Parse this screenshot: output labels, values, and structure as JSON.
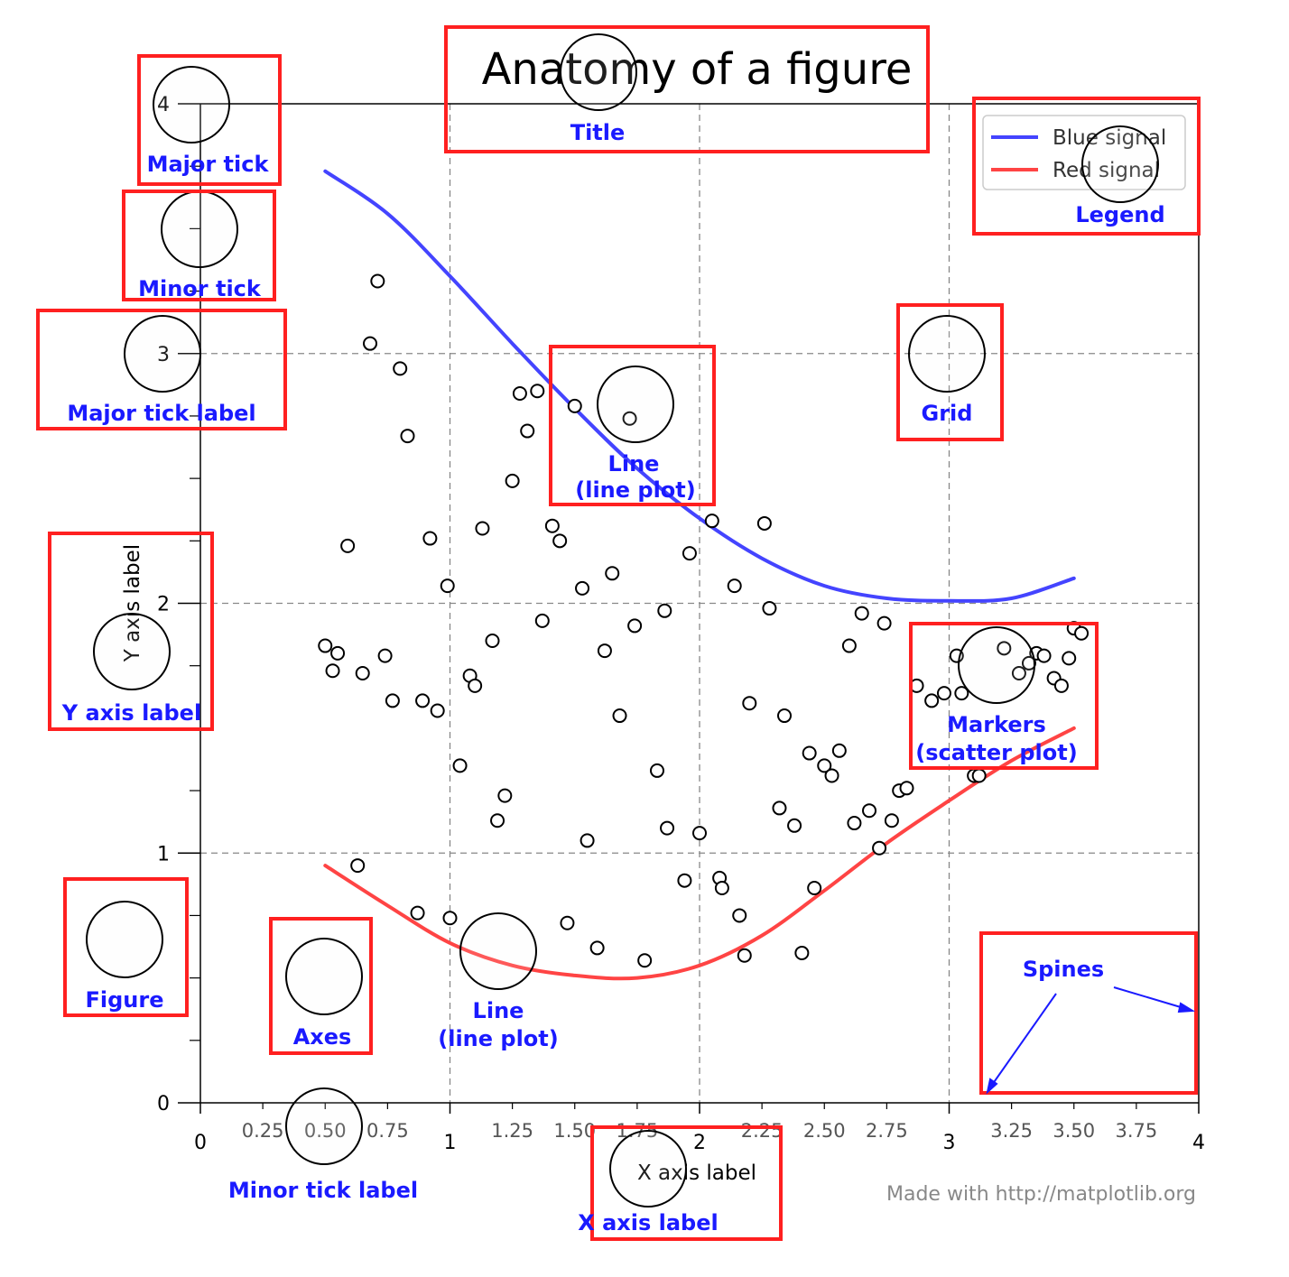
{
  "chart_data": {
    "type": "line",
    "title": "Anatomy of a figure",
    "xlabel": "X axis label",
    "ylabel": "Y axis label",
    "xlim": [
      0,
      4
    ],
    "ylim": [
      0,
      4
    ],
    "grid": true,
    "legend_position": "top-right",
    "x_major_ticks": [
      {
        "value": 0,
        "label": "0"
      },
      {
        "value": 1,
        "label": "1"
      },
      {
        "value": 2,
        "label": "2"
      },
      {
        "value": 3,
        "label": "3"
      },
      {
        "value": 4,
        "label": "4"
      }
    ],
    "x_minor_ticks": [
      {
        "value": 0.25,
        "label": "0.25"
      },
      {
        "value": 0.5,
        "label": "0.50"
      },
      {
        "value": 0.75,
        "label": "0.75"
      },
      {
        "value": 1.25,
        "label": "1.25"
      },
      {
        "value": 1.5,
        "label": "1.50"
      },
      {
        "value": 1.75,
        "label": "1.75"
      },
      {
        "value": 2.25,
        "label": "2.25"
      },
      {
        "value": 2.5,
        "label": "2.50"
      },
      {
        "value": 2.75,
        "label": "2.75"
      },
      {
        "value": 3.25,
        "label": "3.25"
      },
      {
        "value": 3.5,
        "label": "3.50"
      },
      {
        "value": 3.75,
        "label": "3.75"
      }
    ],
    "y_major_ticks": [
      {
        "value": 0,
        "label": "0"
      },
      {
        "value": 1,
        "label": "1"
      },
      {
        "value": 2,
        "label": "2"
      },
      {
        "value": 3,
        "label": "3"
      },
      {
        "value": 4,
        "label": "4"
      }
    ],
    "y_minor_ticks": [
      0.25,
      0.5,
      0.75,
      1.25,
      1.5,
      1.75,
      2.25,
      2.5,
      2.75,
      3.25,
      3.5,
      3.75
    ],
    "series": [
      {
        "name": "Blue signal",
        "type": "line",
        "color": "#4444ff",
        "x": [
          0.5,
          0.75,
          1.0,
          1.25,
          1.5,
          1.75,
          2.0,
          2.25,
          2.5,
          2.75,
          3.0,
          3.25,
          3.5
        ],
        "y": [
          3.73,
          3.56,
          3.31,
          3.04,
          2.78,
          2.54,
          2.34,
          2.18,
          2.07,
          2.02,
          2.01,
          2.02,
          2.1
        ]
      },
      {
        "name": "Red signal",
        "type": "line",
        "color": "#ff4444",
        "x": [
          0.5,
          0.75,
          1.0,
          1.25,
          1.5,
          1.75,
          2.0,
          2.25,
          2.5,
          2.75,
          3.0,
          3.25,
          3.5
        ],
        "y": [
          0.95,
          0.79,
          0.64,
          0.55,
          0.51,
          0.5,
          0.55,
          0.67,
          0.85,
          1.04,
          1.21,
          1.37,
          1.5
        ]
      },
      {
        "type": "scatter",
        "color": "#000000",
        "x": [
          0.71,
          0.68,
          0.8,
          0.83,
          1.35,
          1.28,
          1.31,
          1.5,
          1.72,
          1.25,
          1.13,
          1.41,
          1.44,
          0.92,
          0.99,
          0.59,
          1.53,
          1.65,
          1.74,
          1.37,
          1.17,
          1.86,
          1.96,
          2.05,
          2.14,
          2.26,
          2.28,
          1.62,
          1.68,
          2.6,
          2.65,
          2.74,
          0.5,
          0.53,
          0.55,
          0.65,
          0.74,
          0.77,
          0.89,
          0.95,
          1.08,
          1.1,
          1.04,
          1.22,
          1.19,
          1.55,
          1.87,
          1.83,
          2.0,
          2.08,
          2.16,
          2.2,
          2.34,
          2.32,
          2.38,
          2.44,
          2.5,
          2.53,
          2.56,
          2.62,
          2.68,
          2.72,
          2.77,
          2.8,
          2.83,
          2.87,
          2.93,
          2.98,
          3.03,
          3.05,
          3.1,
          3.12,
          3.22,
          3.28,
          3.32,
          3.35,
          3.38,
          3.42,
          3.45,
          3.48,
          3.5,
          3.53,
          0.63,
          0.87,
          1.0,
          1.47,
          1.59,
          1.78,
          1.94,
          2.09,
          2.18,
          2.41,
          2.46
        ],
        "y": [
          3.29,
          3.04,
          2.94,
          2.67,
          2.85,
          2.84,
          2.69,
          2.79,
          2.74,
          2.49,
          2.3,
          2.31,
          2.25,
          2.26,
          2.07,
          2.23,
          2.06,
          2.12,
          1.91,
          1.93,
          1.85,
          1.97,
          2.2,
          2.33,
          2.07,
          2.32,
          1.98,
          1.81,
          1.55,
          1.83,
          1.96,
          1.92,
          1.83,
          1.73,
          1.8,
          1.72,
          1.79,
          1.61,
          1.61,
          1.57,
          1.71,
          1.67,
          1.35,
          1.23,
          1.13,
          1.05,
          1.1,
          1.33,
          1.08,
          0.9,
          0.75,
          1.6,
          1.55,
          1.18,
          1.11,
          1.4,
          1.35,
          1.31,
          1.41,
          1.12,
          1.17,
          1.02,
          1.13,
          1.25,
          1.26,
          1.67,
          1.61,
          1.64,
          1.79,
          1.64,
          1.31,
          1.31,
          1.82,
          1.72,
          1.76,
          1.8,
          1.79,
          1.7,
          1.67,
          1.78,
          1.9,
          1.88,
          0.95,
          0.76,
          0.74,
          0.72,
          0.62,
          0.57,
          0.89,
          0.86,
          0.59,
          0.6,
          0.86
        ]
      }
    ]
  },
  "legend": {
    "items": [
      {
        "label": "Blue signal",
        "color": "#4444ff"
      },
      {
        "label": "Red signal",
        "color": "#ff4444"
      }
    ]
  },
  "annotations": {
    "title": "Title",
    "major_tick": "Major tick",
    "minor_tick": "Minor tick",
    "major_tick_label": "Major tick label",
    "grid": "Grid",
    "line_plot_top": [
      "Line",
      "(line plot)"
    ],
    "y_axis_label": "Y axis label",
    "markers": [
      "Markers",
      "(scatter plot)"
    ],
    "figure": "Figure",
    "axes": "Axes",
    "line_plot_bottom": [
      "Line",
      "(line plot)"
    ],
    "spines": "Spines",
    "minor_tick_label": "Minor tick label",
    "x_axis_label": "X axis label",
    "legend": "Legend"
  },
  "credit": "Made with http://matplotlib.org",
  "colors": {
    "annotation_box": "#ff2020",
    "annotation_text": "#1a1aff",
    "circle_fill": "#f6f6f6"
  }
}
